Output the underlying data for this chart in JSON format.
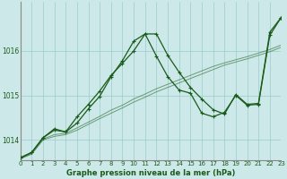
{
  "title": "Graphe pression niveau de la mer (hPa)",
  "bg_color": "#cce8e8",
  "grid_color": "#99cccc",
  "line_color": "#1a5c1a",
  "line_color_faint": "#3a7a3a",
  "xlim": [
    0,
    23
  ],
  "ylim": [
    1013.55,
    1017.1
  ],
  "yticks": [
    1014,
    1015,
    1016
  ],
  "xticks": [
    0,
    1,
    2,
    3,
    4,
    5,
    6,
    7,
    8,
    9,
    10,
    11,
    12,
    13,
    14,
    15,
    16,
    17,
    18,
    19,
    20,
    21,
    22,
    23
  ],
  "s1_y": [
    1013.58,
    1013.68,
    1014.0,
    1014.08,
    1014.12,
    1014.22,
    1014.35,
    1014.48,
    1014.6,
    1014.72,
    1014.85,
    1014.96,
    1015.08,
    1015.18,
    1015.28,
    1015.38,
    1015.48,
    1015.58,
    1015.68,
    1015.75,
    1015.82,
    1015.9,
    1015.98,
    1016.08
  ],
  "s2_y": [
    1013.58,
    1013.7,
    1014.02,
    1014.12,
    1014.15,
    1014.27,
    1014.4,
    1014.53,
    1014.67,
    1014.78,
    1014.92,
    1015.03,
    1015.15,
    1015.25,
    1015.35,
    1015.45,
    1015.55,
    1015.65,
    1015.73,
    1015.8,
    1015.87,
    1015.95,
    1016.03,
    1016.13
  ],
  "s3_y": [
    1013.6,
    1013.72,
    1014.05,
    1014.25,
    1014.18,
    1014.52,
    1014.8,
    1015.1,
    1015.45,
    1015.72,
    1016.0,
    1016.38,
    1016.38,
    1015.9,
    1015.52,
    1015.18,
    1014.92,
    1014.68,
    1014.58,
    1015.02,
    1014.8,
    1014.82,
    1016.42,
    1016.75
  ],
  "s4_y": [
    1013.6,
    1013.72,
    1014.05,
    1014.22,
    1014.18,
    1014.38,
    1014.7,
    1014.98,
    1015.42,
    1015.78,
    1016.22,
    1016.38,
    1015.88,
    1015.42,
    1015.12,
    1015.05,
    1014.6,
    1014.52,
    1014.62,
    1015.0,
    1014.78,
    1014.8,
    1016.35,
    1016.75
  ]
}
